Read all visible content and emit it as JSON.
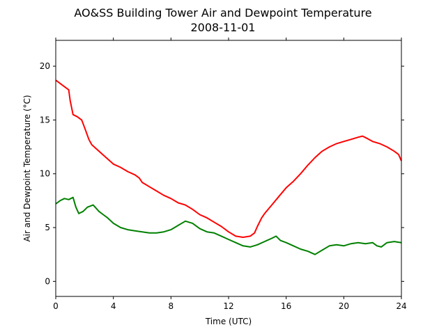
{
  "chart_data": {
    "type": "line",
    "title": "AO&SS Building Tower Air and Dewpoint Temperature",
    "subtitle": "2008-11-01",
    "xlabel": "Time (UTC)",
    "ylabel": "Air and Dewpoint Temperature (°C)",
    "xlim": [
      0,
      24
    ],
    "ylim": [
      -1.4,
      22.4
    ],
    "xticks": [
      0,
      4,
      8,
      12,
      16,
      20,
      24
    ],
    "yticks": [
      0,
      5,
      10,
      15,
      20
    ],
    "grid": false,
    "series": [
      {
        "color": "#ff0000",
        "x": [
          0,
          0.5,
          0.9,
          1.0,
          1.2,
          1.5,
          1.8,
          2.0,
          2.3,
          2.5,
          3.0,
          3.5,
          4.0,
          4.5,
          5.0,
          5.5,
          5.8,
          6.0,
          6.5,
          7.0,
          7.5,
          8.0,
          8.5,
          9.0,
          9.5,
          10.0,
          10.5,
          11.0,
          11.5,
          12.0,
          12.5,
          13.0,
          13.5,
          13.8,
          14.0,
          14.3,
          14.5,
          15.0,
          15.5,
          16.0,
          16.5,
          17.0,
          17.5,
          18.0,
          18.5,
          19.0,
          19.5,
          20.0,
          20.5,
          21.0,
          21.3,
          21.6,
          22.0,
          22.5,
          23.0,
          23.5,
          23.8,
          24.0
        ],
        "values": [
          18.7,
          18.2,
          17.8,
          16.8,
          15.5,
          15.3,
          15.0,
          14.3,
          13.2,
          12.7,
          12.1,
          11.5,
          10.9,
          10.6,
          10.2,
          9.9,
          9.6,
          9.2,
          8.8,
          8.4,
          8.0,
          7.7,
          7.3,
          7.1,
          6.7,
          6.2,
          5.9,
          5.5,
          5.1,
          4.6,
          4.2,
          4.1,
          4.2,
          4.5,
          5.1,
          5.9,
          6.3,
          7.1,
          7.9,
          8.7,
          9.3,
          10.0,
          10.8,
          11.5,
          12.1,
          12.5,
          12.8,
          13.0,
          13.2,
          13.4,
          13.5,
          13.3,
          13.0,
          12.8,
          12.5,
          12.1,
          11.8,
          11.2
        ]
      },
      {
        "color": "#008000",
        "x": [
          0,
          0.3,
          0.6,
          0.9,
          1.2,
          1.4,
          1.6,
          1.9,
          2.2,
          2.6,
          3.0,
          3.3,
          3.6,
          4.0,
          4.5,
          5.0,
          5.5,
          6.0,
          6.5,
          7.0,
          7.5,
          8.0,
          8.5,
          9.0,
          9.5,
          10.0,
          10.5,
          11.0,
          11.5,
          12.0,
          12.5,
          13.0,
          13.5,
          14.0,
          14.5,
          15.0,
          15.3,
          15.6,
          16.0,
          16.5,
          17.0,
          17.5,
          18.0,
          18.5,
          19.0,
          19.5,
          20.0,
          20.5,
          21.0,
          21.5,
          22.0,
          22.3,
          22.6,
          23.0,
          23.5,
          24.0
        ],
        "values": [
          7.2,
          7.5,
          7.7,
          7.6,
          7.8,
          6.9,
          6.3,
          6.5,
          6.9,
          7.1,
          6.5,
          6.2,
          5.9,
          5.4,
          5.0,
          4.8,
          4.7,
          4.6,
          4.5,
          4.5,
          4.6,
          4.8,
          5.2,
          5.6,
          5.4,
          4.9,
          4.6,
          4.5,
          4.2,
          3.9,
          3.6,
          3.3,
          3.2,
          3.4,
          3.7,
          4.0,
          4.2,
          3.8,
          3.6,
          3.3,
          3.0,
          2.8,
          2.5,
          2.9,
          3.3,
          3.4,
          3.3,
          3.5,
          3.6,
          3.5,
          3.6,
          3.3,
          3.2,
          3.6,
          3.7,
          3.6
        ]
      }
    ]
  }
}
